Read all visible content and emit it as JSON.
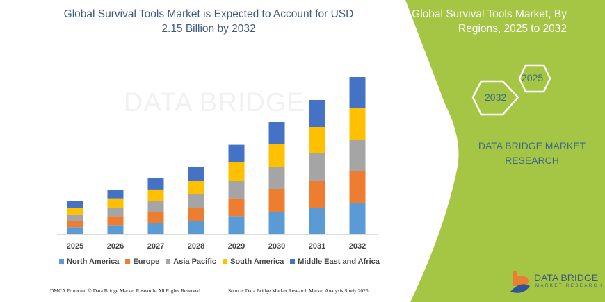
{
  "chart_data": {
    "type": "bar",
    "stacked": true,
    "title": "Global Survival Tools Market is Expected to Account for USD 2.15 Billion by 2032",
    "categories": [
      "2025",
      "2026",
      "2027",
      "2028",
      "2029",
      "2030",
      "2031",
      "2032"
    ],
    "series": [
      {
        "name": "North America",
        "color": "#5b9bd5",
        "values": [
          9.7,
          12.7,
          16,
          19,
          25.7,
          32,
          38,
          45
        ]
      },
      {
        "name": "Europe",
        "color": "#ed7d31",
        "values": [
          9.3,
          13,
          15.7,
          19,
          25.7,
          33,
          39,
          46
        ]
      },
      {
        "name": "Asia Pacific",
        "color": "#a5a5a5",
        "values": [
          9.3,
          12.3,
          15.7,
          19.3,
          25.3,
          32,
          39,
          44
        ]
      },
      {
        "name": "South America",
        "color": "#ffc000",
        "values": [
          9.7,
          13.3,
          16.7,
          19.7,
          26.7,
          32,
          38,
          46
        ]
      },
      {
        "name": "Middle East and Africa",
        "color": "#4472c4",
        "values": [
          10,
          12.7,
          16.7,
          20,
          25,
          32,
          39,
          45
        ]
      }
    ],
    "legend": "bottom",
    "grid": false,
    "y_axis_shown": false
  },
  "side_panel": {
    "title": "Global Survival Tools Market, By Regions, 2025 to 2032",
    "hex_a": "2025",
    "hex_b": "2032",
    "brand": "DATA BRIDGE MARKET RESEARCH",
    "color": "#a5c645"
  },
  "logo": {
    "name": "DATA BRIDGE",
    "sub": "MARKET RESEARCH"
  },
  "watermark": "DATA BRIDGE",
  "footer": {
    "left": "DMCA Protected © Data Bridge Market Research-  All Rights Reserved.",
    "right": "Source: Data Bridge Market Research  Market Analysis Study 2025"
  }
}
